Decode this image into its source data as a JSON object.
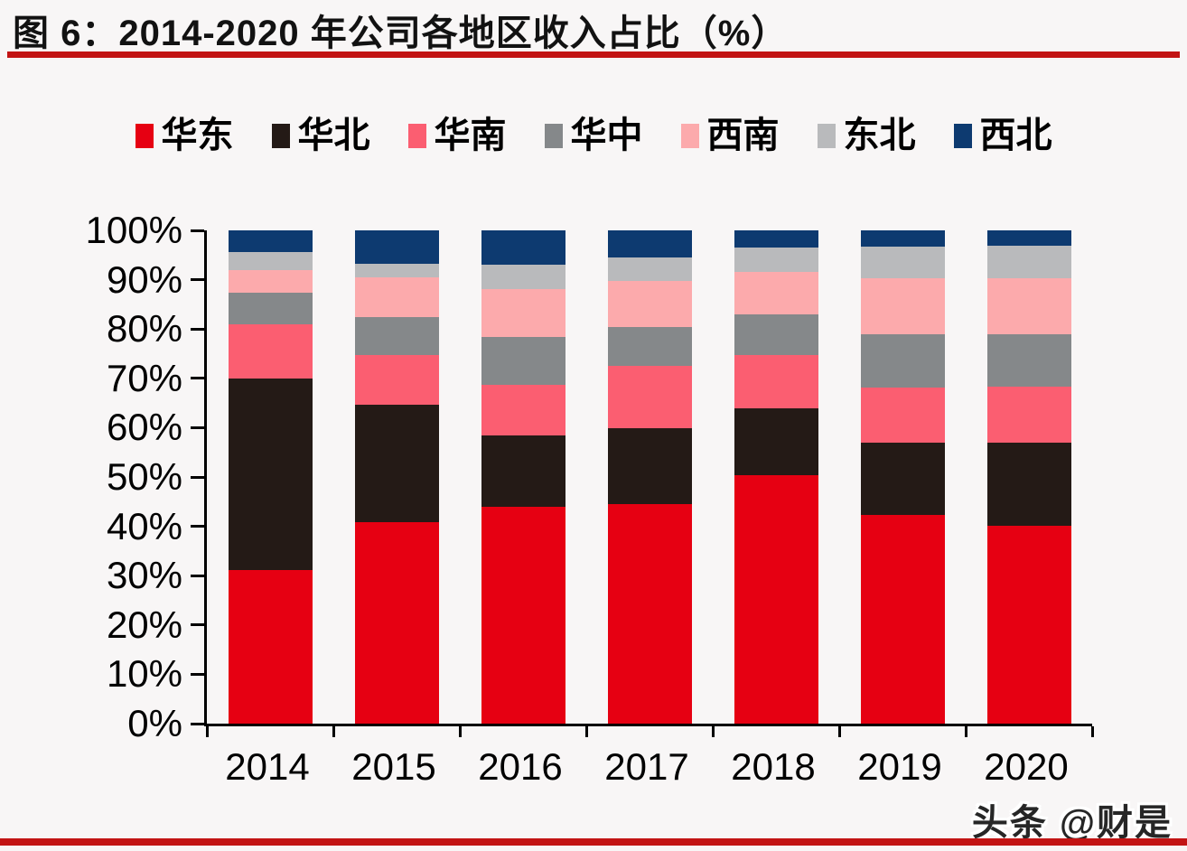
{
  "title": "图 6：2014-2020 年公司各地区收入占比（%）",
  "watermark": "头条 @财是",
  "colors": {
    "rule_red": "#c21414",
    "axis_black": "#000000",
    "background": "#f8f6f6"
  },
  "chart_data": {
    "type": "bar",
    "stacked": true,
    "title": "图 6：2014-2020 年公司各地区收入占比（%）",
    "xlabel": "",
    "ylabel": "",
    "ylim": [
      0,
      100
    ],
    "grid": false,
    "legend_position": "top",
    "y_ticks": [
      "100%",
      "90%",
      "80%",
      "70%",
      "60%",
      "50%",
      "40%",
      "30%",
      "20%",
      "10%",
      "0%"
    ],
    "categories": [
      "2014",
      "2015",
      "2016",
      "2017",
      "2018",
      "2019",
      "2020"
    ],
    "series": [
      {
        "name": "华东",
        "color": "#e60012",
        "values": [
          31.2,
          40.9,
          44.0,
          44.5,
          50.3,
          42.4,
          40.1
        ]
      },
      {
        "name": "华北",
        "color": "#241a16",
        "values": [
          38.8,
          23.7,
          14.4,
          15.4,
          13.6,
          14.6,
          16.9
        ]
      },
      {
        "name": "华南",
        "color": "#fb5e71",
        "values": [
          11.0,
          10.1,
          10.3,
          12.6,
          10.8,
          11.2,
          11.3
        ]
      },
      {
        "name": "华中",
        "color": "#85888a",
        "values": [
          6.3,
          7.8,
          9.7,
          7.9,
          8.3,
          10.8,
          10.7
        ]
      },
      {
        "name": "西南",
        "color": "#fcaaac",
        "values": [
          4.6,
          7.9,
          9.7,
          9.3,
          8.5,
          11.3,
          11.3
        ]
      },
      {
        "name": "东北",
        "color": "#b9babc",
        "values": [
          3.8,
          2.9,
          5.0,
          4.9,
          5.1,
          6.5,
          6.6
        ]
      },
      {
        "name": "西北",
        "color": "#0d3a70",
        "values": [
          4.3,
          6.7,
          6.9,
          5.4,
          3.4,
          3.2,
          3.1
        ]
      }
    ]
  }
}
